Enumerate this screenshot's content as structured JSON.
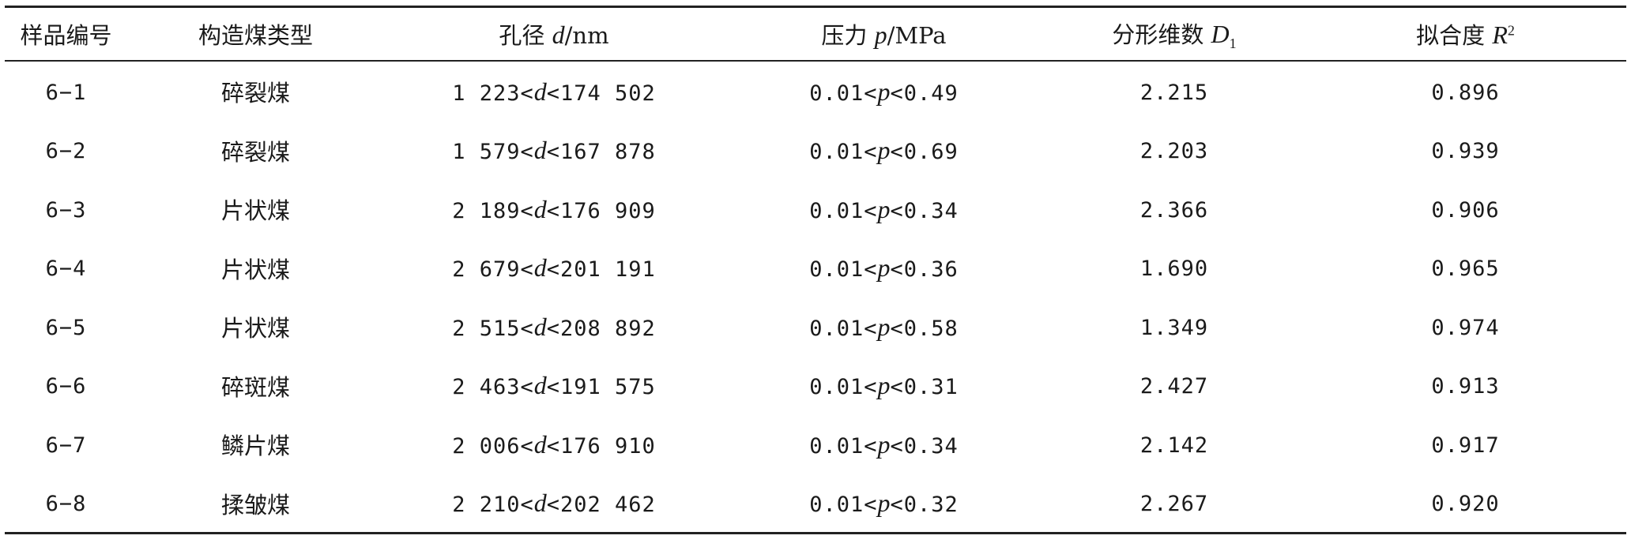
{
  "headers": {
    "sample": "样品编号",
    "coal_type": "构造煤类型",
    "pore": {
      "prefix": "孔径 ",
      "var": "d",
      "unit": "/nm"
    },
    "pressure": {
      "prefix": "压力 ",
      "var": "p",
      "unit": "/MPa"
    },
    "fractal": {
      "prefix": "分形维数 ",
      "var": "D",
      "sub": "1"
    },
    "fit": {
      "prefix": "拟合度 ",
      "var": "R",
      "sup": "2"
    }
  },
  "rows": [
    {
      "sample": "6−1",
      "coal_type": "碎裂煤",
      "d_low": "1 223",
      "d_high": "174 502",
      "p_low": "0.01",
      "p_high": "0.49",
      "D1": "2.215",
      "R2": "0.896"
    },
    {
      "sample": "6−2",
      "coal_type": "碎裂煤",
      "d_low": "1 579",
      "d_high": "167 878",
      "p_low": "0.01",
      "p_high": "0.69",
      "D1": "2.203",
      "R2": "0.939"
    },
    {
      "sample": "6−3",
      "coal_type": "片状煤",
      "d_low": "2 189",
      "d_high": "176 909",
      "p_low": "0.01",
      "p_high": "0.34",
      "D1": "2.366",
      "R2": "0.906"
    },
    {
      "sample": "6−4",
      "coal_type": "片状煤",
      "d_low": "2 679",
      "d_high": "201 191",
      "p_low": "0.01",
      "p_high": "0.36",
      "D1": "1.690",
      "R2": "0.965"
    },
    {
      "sample": "6−5",
      "coal_type": "片状煤",
      "d_low": "2 515",
      "d_high": "208 892",
      "p_low": "0.01",
      "p_high": "0.58",
      "D1": "1.349",
      "R2": "0.974"
    },
    {
      "sample": "6−6",
      "coal_type": "碎斑煤",
      "d_low": "2 463",
      "d_high": "191 575",
      "p_low": "0.01",
      "p_high": "0.31",
      "D1": "2.427",
      "R2": "0.913"
    },
    {
      "sample": "6−7",
      "coal_type": "鳞片煤",
      "d_low": "2 006",
      "d_high": "176 910",
      "p_low": "0.01",
      "p_high": "0.34",
      "D1": "2.142",
      "R2": "0.917"
    },
    {
      "sample": "6−8",
      "coal_type": "揉皱煤",
      "d_low": "2 210",
      "d_high": "202 462",
      "p_low": "0.01",
      "p_high": "0.32",
      "D1": "2.267",
      "R2": "0.920"
    }
  ],
  "symbols": {
    "lt": "<",
    "d": "d",
    "p": "p"
  }
}
